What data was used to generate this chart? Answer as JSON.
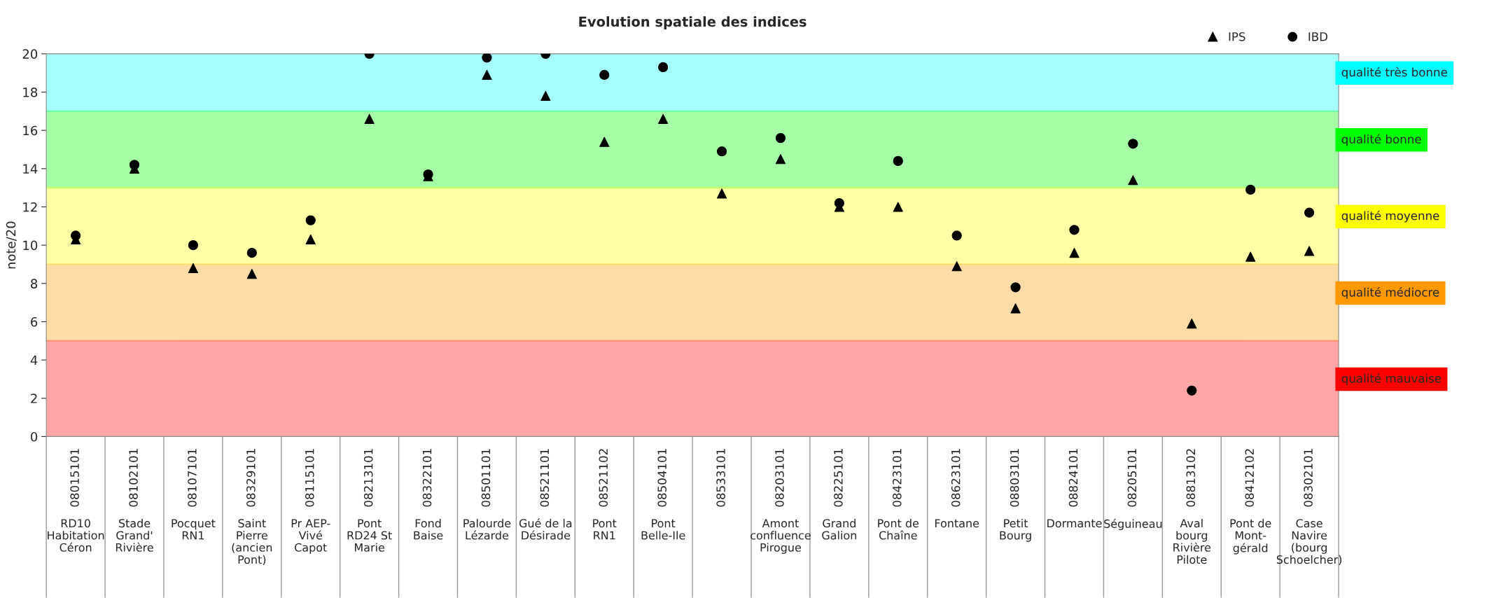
{
  "chart_data": {
    "type": "scatter",
    "title": "Evolution spatiale des indices",
    "ylabel": "note/20",
    "categories": [
      "08015101\nRD10\nHabitation\nCéron",
      "08102101\nStade\nGrand'\nRivière",
      "08107101\nPocquet\nRN1",
      "08329101\nSaint\nPierre\n(ancien\nPont)",
      "08115101\nPr AEP-\nVivé\nCapot",
      "08213101\nPont\nRD24 St\nMarie",
      "08322101\nFond\nBaise",
      "08501101\nPalourde\nLézarde",
      "08521101\nGué de la\nDésirade",
      "08521102\nPont\nRN1",
      "08504101\nPont\nBelle-Ile",
      "08533101",
      "08203101\nAmont\nconfluence\nPirogue",
      "08225101\nGrand\nGalion",
      "08423101\nPont de\nChaîne",
      "08623101\nFontane",
      "08803101\nPetit\nBourg",
      "08824101\nDormante",
      "08205101\nSéguineau",
      "08813102\nAval\nbourg\nRivière\nPilote",
      "08412102\nPont de\nMont-\ngérald",
      "08302101\nCase\nNavire\n(bourg\nSchoelcher)"
    ],
    "series": [
      {
        "name": "IPS",
        "color": "#000000",
        "marker": "triangle",
        "values": [
          10.3,
          14.0,
          8.8,
          8.5,
          10.3,
          16.6,
          13.6,
          18.9,
          17.8,
          15.4,
          16.6,
          12.7,
          14.5,
          12.0,
          12.0,
          8.9,
          6.7,
          9.6,
          13.4,
          5.9,
          9.4,
          9.7
        ]
      },
      {
        "name": "IBD",
        "color": "#000000",
        "marker": "circle",
        "values": [
          10.5,
          14.2,
          10.0,
          9.6,
          11.3,
          20.0,
          13.7,
          19.8,
          20.0,
          18.9,
          19.3,
          14.9,
          15.6,
          12.2,
          14.4,
          10.5,
          7.8,
          10.8,
          15.3,
          2.4,
          12.9,
          11.7
        ]
      }
    ],
    "ylim": [
      0,
      20
    ],
    "yticks": [
      0,
      2,
      4,
      6,
      8,
      10,
      12,
      14,
      16,
      18,
      20
    ],
    "grid": false,
    "legend": "top right",
    "bands": [
      {
        "axis": "y",
        "from": 17,
        "to": 20,
        "label": "qualité très bonne",
        "color": "#00ffff"
      },
      {
        "axis": "y",
        "from": 13,
        "to": 17,
        "label": "qualité bonne",
        "color": "#00ff00"
      },
      {
        "axis": "y",
        "from": 9,
        "to": 13,
        "label": "qualité moyenne",
        "color": "#ffff00"
      },
      {
        "axis": "y",
        "from": 5,
        "to": 9,
        "label": "qualité médiocre",
        "color": "#ff9900"
      },
      {
        "axis": "y",
        "from": 0,
        "to": 5,
        "label": "qualité mauvaise",
        "color": "#ff0000"
      }
    ]
  }
}
